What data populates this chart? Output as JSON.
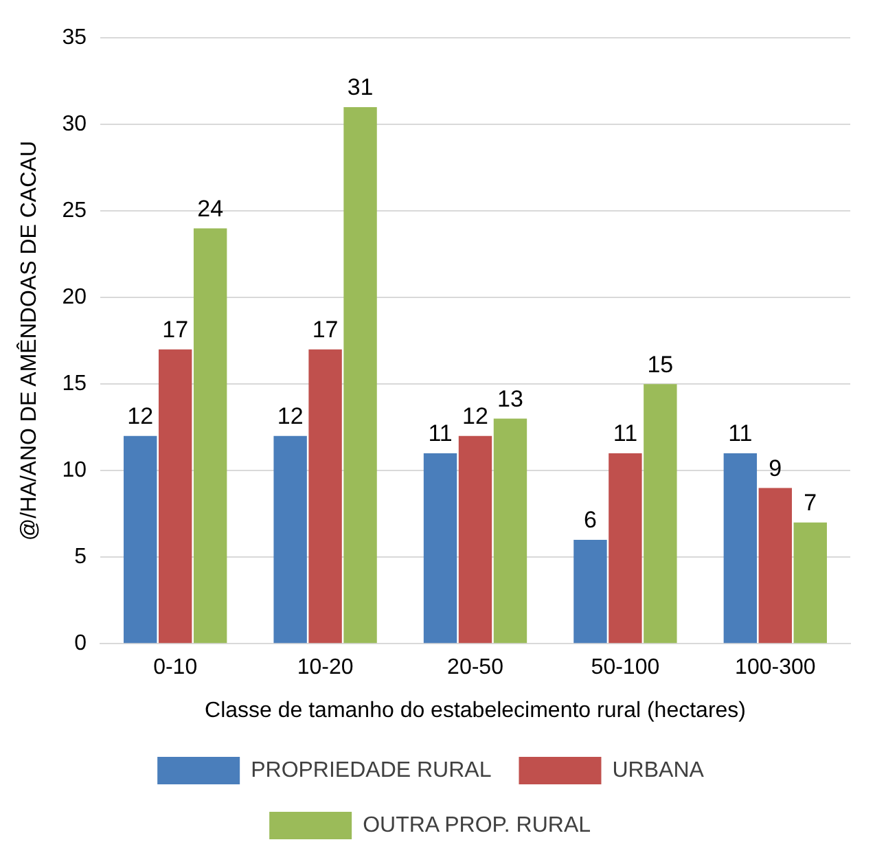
{
  "chart_data": {
    "type": "bar",
    "xlabel": "Classe de tamanho do estabelecimento rural (hectares)",
    "ylabel": "@/HA/ANO DE AMÊNDOAS DE CACAU",
    "categories": [
      "0-10",
      "10-20",
      "20-50",
      "50-100",
      "100-300"
    ],
    "series": [
      {
        "name": "PROPRIEDADE RURAL",
        "color": "#4a7ebb",
        "values": [
          12,
          12,
          11,
          6,
          11
        ]
      },
      {
        "name": "URBANA",
        "color": "#c0504d",
        "values": [
          17,
          17,
          12,
          11,
          9
        ]
      },
      {
        "name": "OUTRA PROP. RURAL",
        "color": "#9bbb59",
        "values": [
          24,
          31,
          13,
          15,
          7
        ]
      }
    ],
    "ylim": [
      0,
      35
    ],
    "yticks": [
      0,
      5,
      10,
      15,
      20,
      25,
      30,
      35
    ],
    "grid": "y",
    "legend": "bottom",
    "data_labels": true
  }
}
